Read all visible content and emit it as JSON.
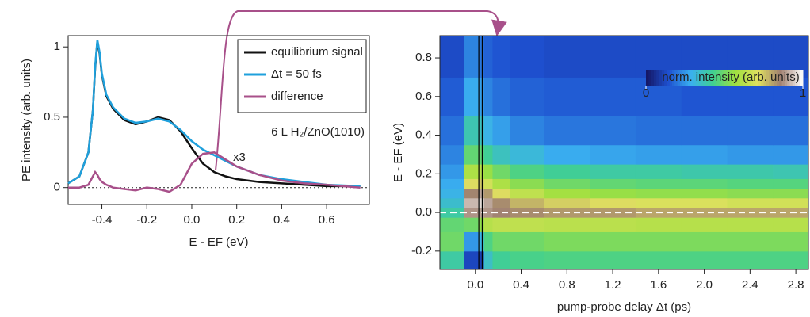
{
  "chart_data": [
    {
      "type": "line",
      "xlabel": "E - EF (eV)",
      "ylabel": "PE intensity (arb. units)",
      "x": [
        -0.55,
        -0.5,
        -0.46,
        -0.44,
        -0.43,
        -0.42,
        -0.41,
        -0.4,
        -0.38,
        -0.35,
        -0.3,
        -0.25,
        -0.2,
        -0.15,
        -0.1,
        -0.05,
        0.0,
        0.05,
        0.1,
        0.15,
        0.2,
        0.3,
        0.4,
        0.5,
        0.6,
        0.75
      ],
      "series": [
        {
          "name": "equilibrium signal",
          "color": "#111111",
          "values": [
            0.03,
            0.08,
            0.25,
            0.55,
            0.85,
            1.04,
            0.95,
            0.8,
            0.65,
            0.56,
            0.48,
            0.45,
            0.47,
            0.5,
            0.48,
            0.4,
            0.28,
            0.17,
            0.11,
            0.08,
            0.06,
            0.04,
            0.03,
            0.02,
            0.01,
            0.01
          ]
        },
        {
          "name": "Δt = 50 fs",
          "color": "#1fa0dc",
          "values": [
            0.03,
            0.08,
            0.25,
            0.55,
            0.86,
            1.05,
            0.96,
            0.81,
            0.66,
            0.57,
            0.49,
            0.46,
            0.47,
            0.49,
            0.47,
            0.41,
            0.33,
            0.27,
            0.23,
            0.19,
            0.15,
            0.09,
            0.06,
            0.04,
            0.02,
            0.01
          ]
        },
        {
          "name": "difference",
          "color": "#a8508a",
          "values": [
            0,
            0,
            0.02,
            0.08,
            0.11,
            0.09,
            0.06,
            0.04,
            0.02,
            0,
            -0.01,
            -0.02,
            0,
            -0.01,
            -0.03,
            0.02,
            0.17,
            0.24,
            0.25,
            0.2,
            0.15,
            0.09,
            0.05,
            0.03,
            0.02,
            0
          ]
        }
      ],
      "xlim": [
        -0.55,
        0.79
      ],
      "ylim": [
        -0.12,
        1.08
      ],
      "xticks": [
        -0.4,
        -0.2,
        {
          "value": 0,
          "label": "0.0"
        },
        0.2,
        0.4,
        0.6
      ],
      "yticks": [
        0,
        0.5,
        1
      ],
      "annotations": [
        "6 L H₂/ZnO(101̄0)",
        "x3"
      ],
      "legend": "upper right",
      "hline": 0
    },
    {
      "type": "heatmap",
      "xlabel": "pump-probe delay Δt (ps)",
      "ylabel": "E - EF (eV)",
      "x": [
        -0.2,
        0.0,
        0.05,
        0.1,
        0.2,
        0.4,
        0.8,
        1.2,
        1.6,
        2.0,
        2.4,
        2.8
      ],
      "y": [
        -0.25,
        -0.15,
        -0.05,
        0.0,
        0.05,
        0.1,
        0.15,
        0.2,
        0.3,
        0.4,
        0.6,
        0.8
      ],
      "z": [
        [
          0.4,
          0.12,
          0.1,
          0.35,
          0.42,
          0.44,
          0.45,
          0.45,
          0.45,
          0.45,
          0.45,
          0.45
        ],
        [
          0.5,
          0.25,
          0.3,
          0.45,
          0.5,
          0.5,
          0.52,
          0.52,
          0.52,
          0.52,
          0.52,
          0.52
        ],
        [
          0.48,
          0.5,
          0.55,
          0.62,
          0.64,
          0.64,
          0.63,
          0.63,
          0.62,
          0.62,
          0.62,
          0.62
        ],
        [
          0.4,
          0.88,
          0.9,
          0.88,
          0.86,
          0.84,
          0.82,
          0.82,
          0.8,
          0.8,
          0.8,
          0.8
        ],
        [
          0.34,
          0.92,
          0.96,
          0.9,
          0.84,
          0.78,
          0.74,
          0.72,
          0.7,
          0.7,
          0.68,
          0.68
        ],
        [
          0.3,
          0.85,
          0.9,
          0.82,
          0.72,
          0.64,
          0.58,
          0.56,
          0.55,
          0.55,
          0.54,
          0.54
        ],
        [
          0.28,
          0.72,
          0.75,
          0.68,
          0.6,
          0.54,
          0.5,
          0.48,
          0.47,
          0.47,
          0.46,
          0.46
        ],
        [
          0.25,
          0.6,
          0.62,
          0.56,
          0.5,
          0.45,
          0.42,
          0.4,
          0.4,
          0.39,
          0.39,
          0.38
        ],
        [
          0.22,
          0.48,
          0.48,
          0.42,
          0.36,
          0.32,
          0.28,
          0.27,
          0.26,
          0.26,
          0.25,
          0.25
        ],
        [
          0.19,
          0.38,
          0.36,
          0.3,
          0.26,
          0.22,
          0.2,
          0.2,
          0.19,
          0.19,
          0.19,
          0.19
        ],
        [
          0.16,
          0.28,
          0.26,
          0.22,
          0.19,
          0.17,
          0.16,
          0.16,
          0.16,
          0.15,
          0.15,
          0.15
        ],
        [
          0.13,
          0.22,
          0.2,
          0.17,
          0.15,
          0.14,
          0.13,
          0.13,
          0.13,
          0.13,
          0.13,
          0.13
        ]
      ],
      "xlim": [
        -0.31,
        2.91
      ],
      "ylim": [
        -0.295,
        0.915
      ],
      "xticks": [
        {
          "value": 0,
          "label": "0.0"
        },
        0.4,
        0.8,
        1.2,
        1.6,
        {
          "value": 2,
          "label": "2.0"
        },
        2.4,
        2.8
      ],
      "yticks": [
        -0.2,
        {
          "value": 0,
          "label": "0.0"
        },
        0.2,
        0.4,
        0.6,
        0.8
      ],
      "colorbar": {
        "label": "norm. intensity (arb. units)",
        "zlim": [
          0,
          1
        ],
        "ticks": [
          0,
          1
        ]
      },
      "colorscale": [
        "#141460",
        "#1e50d0",
        "#3ab0f0",
        "#40d090",
        "#a0e040",
        "#e0e060",
        "#a08070",
        "#ffffff"
      ],
      "vlines": [
        0.03,
        0.06
      ],
      "hline": 0
    }
  ]
}
